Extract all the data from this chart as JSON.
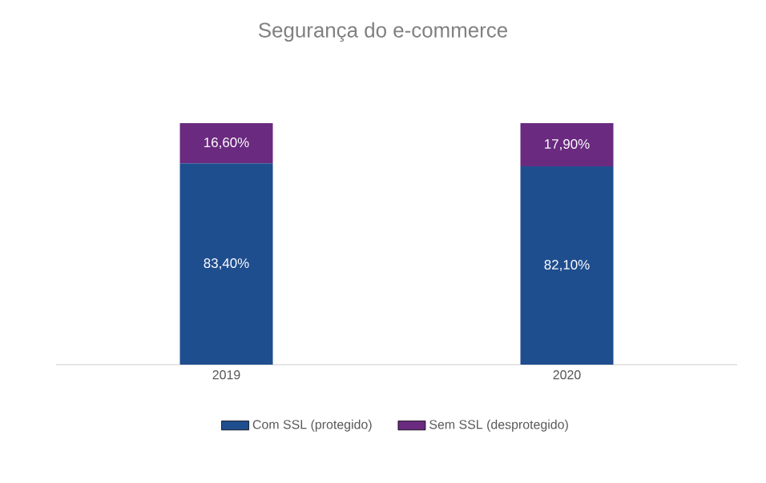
{
  "chart_data": {
    "type": "bar",
    "title": "Segurança do e-commerce",
    "categories": [
      "2019",
      "2020"
    ],
    "stacked": true,
    "legend": "bottom",
    "series": [
      {
        "name": "Com SSL (protegido)",
        "color": "#1f4e8f",
        "values": [
          83.4,
          82.1
        ],
        "value_labels": [
          "83,40%",
          "82,10%"
        ]
      },
      {
        "name": "Sem SSL (desprotegido)",
        "color": "#6a2a80",
        "values": [
          16.6,
          17.9
        ],
        "value_labels": [
          "16,60%",
          "17,90%"
        ]
      }
    ]
  }
}
